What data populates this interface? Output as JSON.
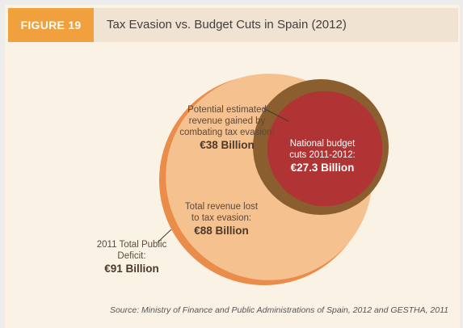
{
  "figure": {
    "tag": "FIGURE 19",
    "title": "Tax Evasion vs. Budget Cuts in Spain (2012)"
  },
  "chart_data": {
    "type": "nested-bubble",
    "title": "Tax Evasion vs. Budget Cuts in Spain (2012)",
    "unit": "€ Billion",
    "circles": [
      {
        "key": "deficit",
        "label": "2011 Total Public Deficit:",
        "value_text": "€91 Billion",
        "value": 91,
        "color": "#ea8c4a"
      },
      {
        "key": "lost",
        "label": "Total revenue lost to tax evasion:",
        "value_text": "€88 Billion",
        "value": 88,
        "color": "#f5c18f"
      },
      {
        "key": "gain",
        "label": "Potential estimated revenue gained by combating tax evasion:",
        "value_text": "€38 Billion",
        "value": 38,
        "color": "#8a5e2e"
      },
      {
        "key": "cuts",
        "label": "National budget cuts 2011-2012:",
        "value_text": "€27.3 Billion",
        "value": 27.3,
        "color": "#b03434"
      }
    ],
    "source": "Source: Ministry of Finance and Public Administrations of Spain, 2012 and GESTHA, 2011"
  }
}
